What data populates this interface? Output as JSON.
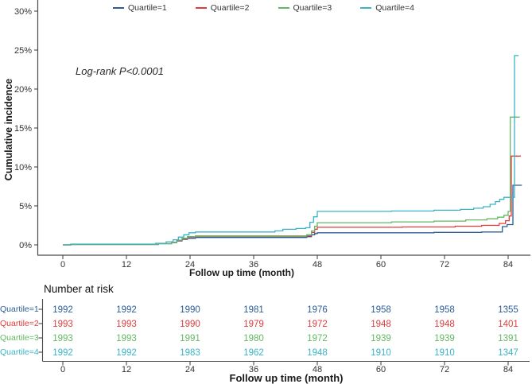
{
  "chart_data": {
    "type": "line",
    "subtype": "step-cumulative-incidence",
    "title": "",
    "xlabel": "Follow up time (month)",
    "ylabel": "Cumulative incidence",
    "annotation": "Log-rank P<0.0001",
    "xlim": [
      0,
      88
    ],
    "ylim": [
      0,
      30.5
    ],
    "xticks": [
      0,
      12,
      24,
      36,
      48,
      60,
      72,
      84
    ],
    "yticks": [
      0,
      5,
      10,
      15,
      20,
      25,
      30
    ],
    "ytick_labels": [
      "0%",
      "5%",
      "10%",
      "15%",
      "20%",
      "25%",
      "30%"
    ],
    "grid": false,
    "legend_position": "top",
    "axis_color": "#4a4a4a",
    "tick_label_color": "#333333",
    "series": [
      {
        "name": "Quartile=1",
        "color": "#2b5d96",
        "steps": [
          [
            0,
            0
          ],
          [
            1.5,
            0.05
          ],
          [
            18,
            0.15
          ],
          [
            20.5,
            0.3
          ],
          [
            21.5,
            0.5
          ],
          [
            22.5,
            0.7
          ],
          [
            23.5,
            0.85
          ],
          [
            25,
            0.95
          ],
          [
            46,
            1.05
          ],
          [
            46.9,
            1.3
          ],
          [
            47.5,
            1.45
          ],
          [
            48,
            1.55
          ],
          [
            70,
            1.6
          ],
          [
            79,
            1.65
          ],
          [
            82.9,
            2.35
          ],
          [
            83.8,
            2.6
          ],
          [
            84.9,
            7.65
          ],
          [
            86.6,
            7.65
          ]
        ]
      },
      {
        "name": "Quartile=2",
        "color": "#e33b3b",
        "steps": [
          [
            0,
            0
          ],
          [
            1.5,
            0.05
          ],
          [
            18,
            0.15
          ],
          [
            20.5,
            0.35
          ],
          [
            21.5,
            0.55
          ],
          [
            22.5,
            0.8
          ],
          [
            23.5,
            1.0
          ],
          [
            25,
            1.1
          ],
          [
            46,
            1.2
          ],
          [
            46.9,
            1.6
          ],
          [
            47.5,
            2.0
          ],
          [
            48,
            2.25
          ],
          [
            64,
            2.3
          ],
          [
            74,
            2.4
          ],
          [
            79,
            2.5
          ],
          [
            82.3,
            2.75
          ],
          [
            83.5,
            3.1
          ],
          [
            84.2,
            3.7
          ],
          [
            84.6,
            11.4
          ],
          [
            86.4,
            11.4
          ]
        ]
      },
      {
        "name": "Quartile=3",
        "color": "#63b963",
        "steps": [
          [
            0,
            0
          ],
          [
            1.5,
            0.05
          ],
          [
            18,
            0.15
          ],
          [
            20.5,
            0.35
          ],
          [
            21.5,
            0.6
          ],
          [
            22.5,
            0.85
          ],
          [
            23.5,
            1.05
          ],
          [
            25,
            1.15
          ],
          [
            46,
            1.3
          ],
          [
            46.9,
            1.8
          ],
          [
            47.5,
            2.4
          ],
          [
            48,
            2.85
          ],
          [
            62,
            2.95
          ],
          [
            70,
            3.05
          ],
          [
            76,
            3.2
          ],
          [
            80,
            3.35
          ],
          [
            82,
            3.55
          ],
          [
            83.2,
            3.8
          ],
          [
            84,
            4.3
          ],
          [
            84.4,
            16.4
          ],
          [
            86.2,
            16.4
          ]
        ]
      },
      {
        "name": "Quartile=4",
        "color": "#3ab3c8",
        "steps": [
          [
            0,
            0
          ],
          [
            1.5,
            0.1
          ],
          [
            17.5,
            0.2
          ],
          [
            19.5,
            0.4
          ],
          [
            20.8,
            0.65
          ],
          [
            21.8,
            1.0
          ],
          [
            22.8,
            1.3
          ],
          [
            23.8,
            1.55
          ],
          [
            25,
            1.65
          ],
          [
            40,
            1.8
          ],
          [
            41.5,
            2.0
          ],
          [
            44,
            2.1
          ],
          [
            45.8,
            2.2
          ],
          [
            46.6,
            2.9
          ],
          [
            47.3,
            3.6
          ],
          [
            48,
            4.3
          ],
          [
            62,
            4.35
          ],
          [
            70,
            4.45
          ],
          [
            75,
            4.55
          ],
          [
            77.5,
            4.7
          ],
          [
            79.3,
            4.9
          ],
          [
            80.6,
            5.2
          ],
          [
            81.6,
            5.55
          ],
          [
            82.4,
            5.85
          ],
          [
            83.2,
            6.1
          ],
          [
            85.2,
            24.3
          ],
          [
            86,
            24.3
          ]
        ]
      }
    ]
  },
  "risk_table": {
    "title": "Number at risk",
    "xlabel": "Follow up time (month)",
    "xticks": [
      0,
      12,
      24,
      36,
      48,
      60,
      72,
      84
    ],
    "rows": [
      {
        "label": "Quartile=1",
        "color": "#2b5d96",
        "values": [
          "1992",
          "1992",
          "1990",
          "1981",
          "1976",
          "1958",
          "1958",
          "1355"
        ]
      },
      {
        "label": "Quartile=2",
        "color": "#e33b3b",
        "values": [
          "1993",
          "1993",
          "1990",
          "1979",
          "1972",
          "1948",
          "1948",
          "1401"
        ]
      },
      {
        "label": "Quartile=3",
        "color": "#63b963",
        "values": [
          "1993",
          "1993",
          "1991",
          "1980",
          "1972",
          "1939",
          "1939",
          "1391"
        ]
      },
      {
        "label": "Quartile=4",
        "color": "#3ab3c8",
        "values": [
          "1992",
          "1992",
          "1983",
          "1962",
          "1948",
          "1910",
          "1910",
          "1347"
        ]
      }
    ]
  }
}
